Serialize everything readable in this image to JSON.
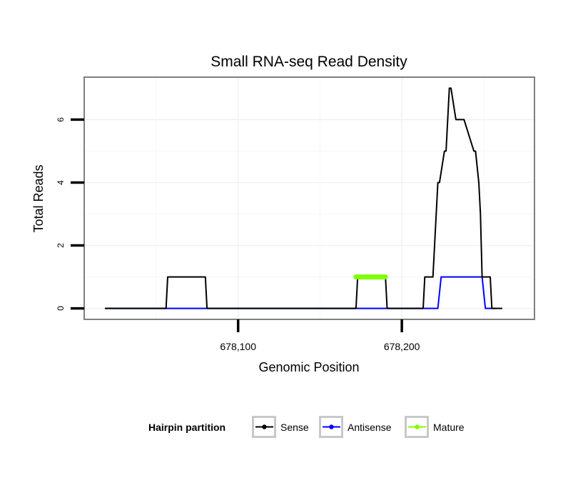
{
  "chart_data": {
    "type": "line",
    "title": "Small RNA-seq Read Density",
    "xlabel": "Genomic Position",
    "ylabel": "Total Reads",
    "xlim": [
      678006,
      678281
    ],
    "ylim": [
      -0.35,
      7.35
    ],
    "x_ticks": [
      678100,
      678200
    ],
    "x_tick_labels": [
      "678,100",
      "678,200"
    ],
    "y_ticks": [
      0,
      2,
      4,
      6
    ],
    "y_tick_labels": [
      "0",
      "2",
      "4",
      "6"
    ],
    "grid": true,
    "legend": {
      "title": "Hairpin partition",
      "position": "bottom",
      "entries": [
        {
          "name": "Sense",
          "color": "#000000"
        },
        {
          "name": "Antisense",
          "color": "#0000ff"
        },
        {
          "name": "Mature",
          "color": "#7fff00"
        }
      ]
    },
    "series": [
      {
        "name": "Sense",
        "color": "#000000",
        "x": [
          678019,
          678056,
          678057,
          678080,
          678081,
          678172,
          678173,
          678190,
          678191,
          678213,
          678214,
          678219,
          678220,
          678222,
          678223,
          678226,
          678227,
          678229,
          678230,
          678233,
          678234,
          678237,
          678238,
          678244,
          678245,
          678247,
          678248,
          678249,
          678250,
          678253,
          678254,
          678255,
          678256,
          678261
        ],
        "values": [
          0,
          0,
          1,
          1,
          0,
          0,
          1,
          1,
          0,
          0,
          1,
          1,
          2,
          4,
          4,
          5,
          5,
          7,
          7,
          6,
          6,
          6,
          6,
          5,
          5,
          4,
          3,
          1,
          1,
          1,
          1,
          0,
          0,
          0
        ]
      },
      {
        "name": "Antisense",
        "color": "#0000ff",
        "x": [
          678019,
          678222,
          678224,
          678249,
          678251,
          678257
        ],
        "values": [
          0,
          0,
          1,
          1,
          0,
          0
        ]
      },
      {
        "name": "Mature",
        "color": "#7fff00",
        "x": [
          678172,
          678190
        ],
        "values": [
          1,
          1
        ]
      }
    ]
  }
}
